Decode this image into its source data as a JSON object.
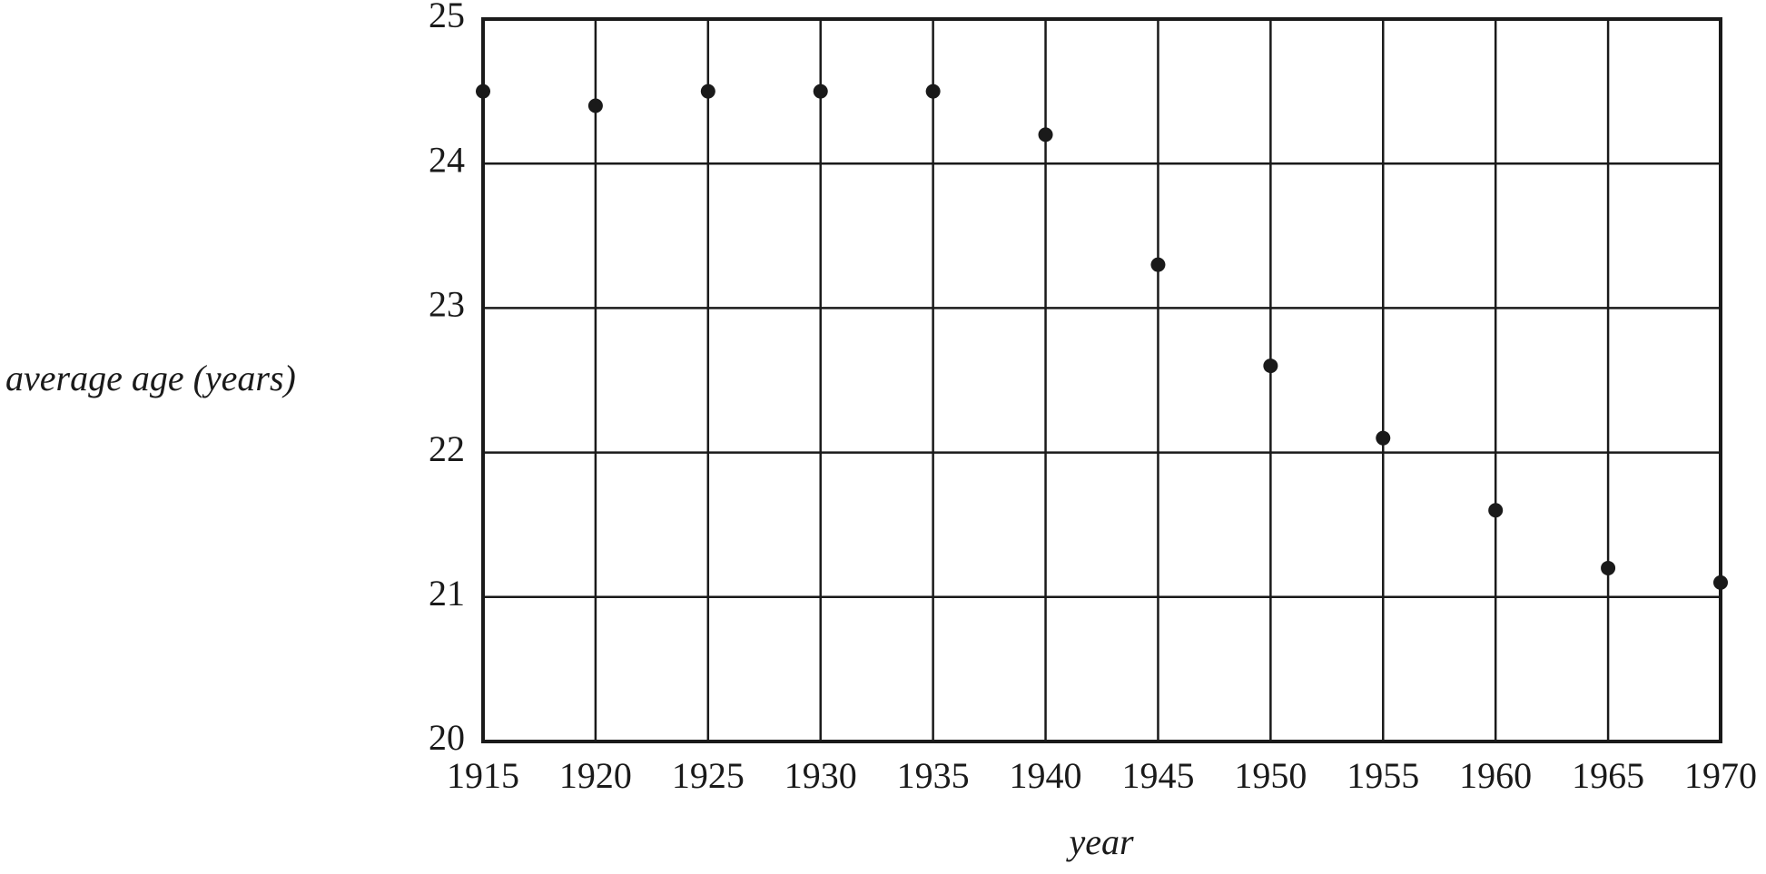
{
  "chart_data": {
    "type": "line",
    "x_label": "year",
    "y_label": "average age (years)",
    "x": [
      1915,
      1920,
      1925,
      1930,
      1935,
      1940,
      1945,
      1950,
      1955,
      1960,
      1965,
      1970
    ],
    "series": [
      {
        "name": "average age",
        "color": "#1a1a1a",
        "values": [
          24.5,
          24.4,
          24.5,
          24.5,
          24.5,
          24.2,
          23.3,
          22.6,
          22.1,
          21.6,
          21.2,
          21.1
        ]
      }
    ],
    "xlim": [
      1915,
      1970
    ],
    "xticks": [
      1915,
      1920,
      1925,
      1930,
      1935,
      1940,
      1945,
      1950,
      1955,
      1960,
      1965,
      1970
    ],
    "ylim": [
      20,
      25
    ],
    "yticks": [
      20,
      21,
      22,
      23,
      24,
      25
    ],
    "grid": true
  }
}
